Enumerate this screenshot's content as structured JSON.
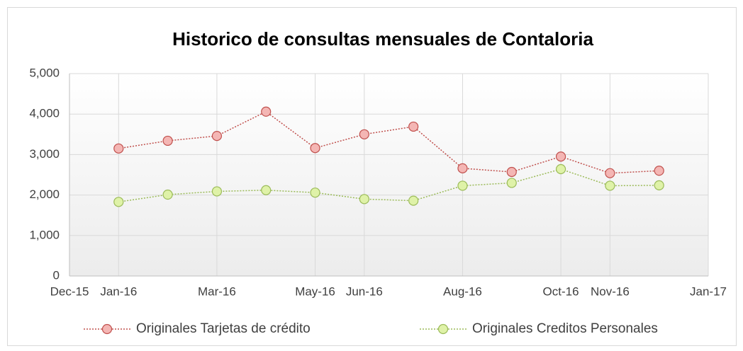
{
  "chart_data": {
    "type": "line",
    "title": "Historico de consultas mensuales de Contaloria",
    "x": [
      "2015-12",
      "2016-01",
      "2016-02",
      "2016-03",
      "2016-04",
      "2016-05",
      "2016-06",
      "2016-07",
      "2016-08",
      "2016-09",
      "2016-10",
      "2016-11"
    ],
    "series": [
      {
        "name": "Originales Tarjetas de crédito",
        "color": "#c0504d",
        "marker_color": "#f4b6b4",
        "values": [
          3150,
          3340,
          3460,
          4060,
          3160,
          3500,
          3690,
          2660,
          2570,
          2950,
          2540,
          2600
        ]
      },
      {
        "name": "Originales Creditos Personales",
        "color": "#9bbb59",
        "marker_color": "#dff2a8",
        "values": [
          1830,
          2010,
          2090,
          2120,
          2060,
          1900,
          1860,
          2230,
          2300,
          2640,
          2230,
          2240
        ]
      }
    ],
    "xlim": [
      "2015-12",
      "2017-01"
    ],
    "xticks": [
      {
        "value": "2015-12",
        "label": "Dec-15"
      },
      {
        "value": "2016-01",
        "label": "Jan-16"
      },
      {
        "value": "2016-03",
        "label": "Mar-16"
      },
      {
        "value": "2016-05",
        "label": "May-16"
      },
      {
        "value": "2016-06",
        "label": "Jun-16"
      },
      {
        "value": "2016-08",
        "label": "Aug-16"
      },
      {
        "value": "2016-10",
        "label": "Oct-16"
      },
      {
        "value": "2016-11",
        "label": "Nov-16"
      },
      {
        "value": "2017-01",
        "label": "Jan-17"
      }
    ],
    "ylim": [
      0,
      5000
    ],
    "yticks": [
      0,
      {
        "value": 1000,
        "label": "1,000"
      },
      {
        "value": 2000,
        "label": "2,000"
      },
      {
        "value": 3000,
        "label": "3,000"
      },
      {
        "value": 4000,
        "label": "4,000"
      },
      {
        "value": 5000,
        "label": "5,000"
      }
    ],
    "grid": true,
    "legend": "bottom"
  }
}
